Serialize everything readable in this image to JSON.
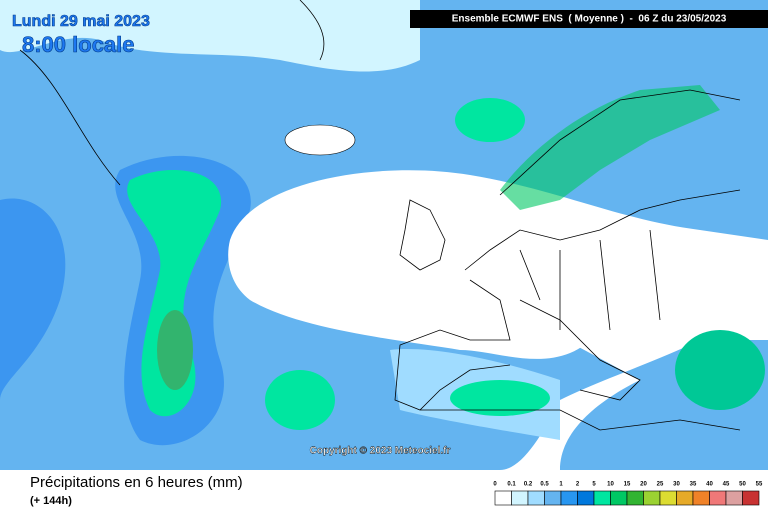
{
  "header": {
    "date": "Lundi 29 mai 2023",
    "time": "8:00 locale",
    "model": "Ensemble ECMWF ENS  ( Moyenne )  -  06 Z du 23/05/2023"
  },
  "copyright": "Copyright © 2023 Meteociel.fr",
  "footer": {
    "title": "Précipitations en 6 heures (mm)",
    "range": "(+ 144h)"
  },
  "legend": {
    "ticks": [
      "0",
      "0.1",
      "0.2",
      "0.5",
      "1",
      "2",
      "5",
      "10",
      "15",
      "20",
      "25",
      "30",
      "35",
      "40",
      "45",
      "50",
      "55"
    ],
    "colors": [
      "#ffffff",
      "#d2f5ff",
      "#a0dcff",
      "#64b4f0",
      "#2896f0",
      "#0078dc",
      "#00e6a0",
      "#00c864",
      "#32b432",
      "#9bd232",
      "#dcdc32",
      "#e6aa28",
      "#f08228",
      "#f07878",
      "#dca0a0",
      "#c83232"
    ]
  }
}
